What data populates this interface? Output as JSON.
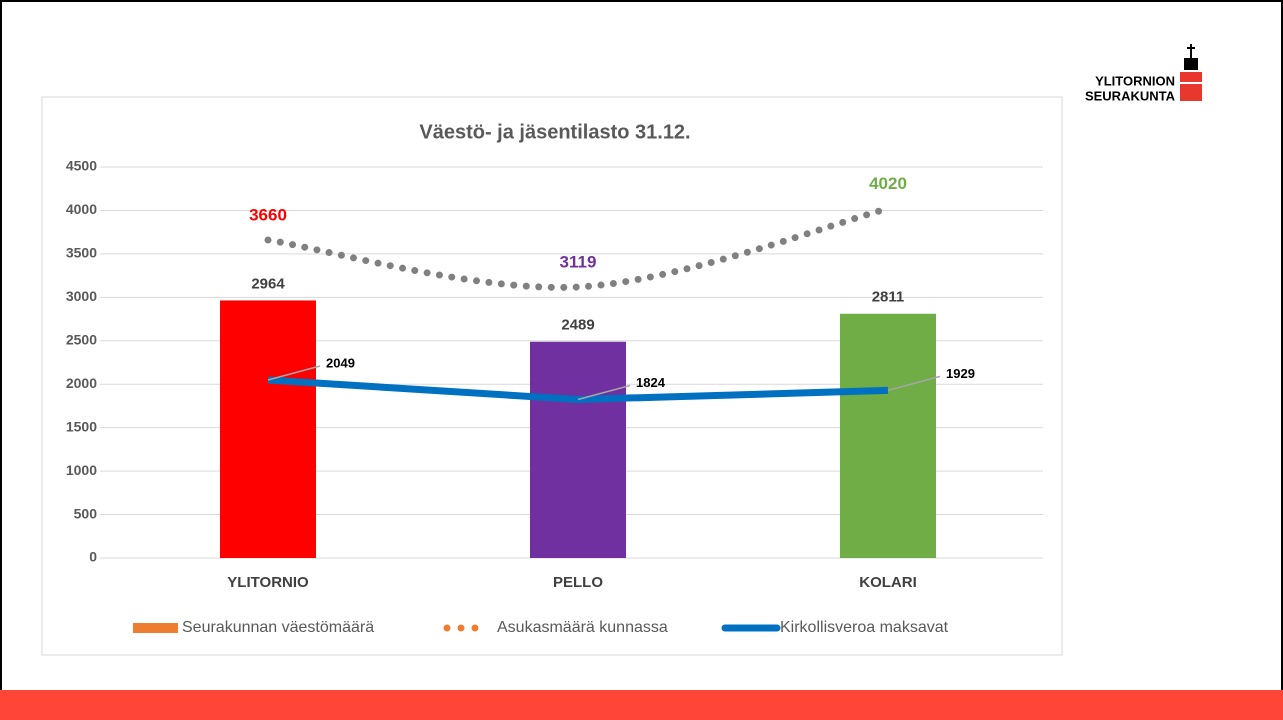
{
  "logo": {
    "lines": [
      "YLITORNION",
      "SEURAKUNTA"
    ]
  },
  "chart_data": {
    "type": "bar",
    "title": "Väestö- ja jäsentilasto  31.12.",
    "categories": [
      "YLITORNIO",
      "PELLO",
      "KOLARI"
    ],
    "ylim": [
      0,
      4500
    ],
    "yticks": [
      0,
      500,
      1000,
      1500,
      2000,
      2500,
      3000,
      3500,
      4000,
      4500
    ],
    "grid": true,
    "series": [
      {
        "name": "Seurakunnan väestömäärä",
        "type": "bar",
        "color": "#ed7d31",
        "colors": [
          "#ff0000",
          "#7030a0",
          "#70ad47"
        ],
        "values": [
          2964,
          2489,
          2811
        ]
      },
      {
        "name": "Asukasmäärä kunnassa",
        "type": "dotted-line",
        "color": "#ed7d31",
        "line_color": "#808080",
        "label_colors": [
          "#ff0000",
          "#7030a0",
          "#70ad47"
        ],
        "values": [
          3660,
          3119,
          4020
        ]
      },
      {
        "name": "Kirkollisveroa maksavat",
        "type": "line",
        "color": "#0070c0",
        "values": [
          2049,
          1824,
          1929
        ]
      }
    ]
  }
}
